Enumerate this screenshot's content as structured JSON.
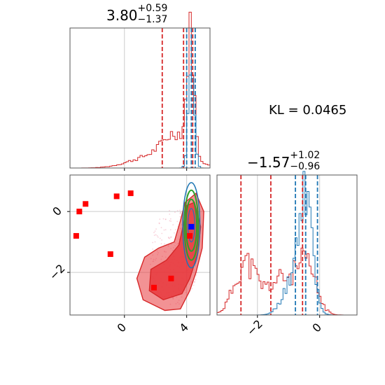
{
  "titles": {
    "param1": {
      "value": "3.80",
      "plus": "+0.59",
      "minus": "−1.37"
    },
    "param2": {
      "value": "−1.57",
      "plus": "+1.02",
      "minus": "−0.96"
    }
  },
  "kl_text": "KL = 0.0465",
  "colors": {
    "red": "#d62728",
    "blue": "#1f77b4",
    "green": "#2ca02c",
    "fill_red": "#e8383d",
    "grid": "#cccccc"
  },
  "chart_data": [
    {
      "type": "histogram",
      "panel": "marginal-param1",
      "xlim": [
        -3.5,
        5.5
      ],
      "xticks": [
        0,
        4
      ],
      "series": [
        {
          "color": "red",
          "quantiles": [
            2.43,
            3.8,
            4.39
          ]
        },
        {
          "color": "blue",
          "quantiles": [
            4.0,
            4.3,
            4.55
          ]
        }
      ]
    },
    {
      "type": "histogram",
      "panel": "marginal-param2",
      "xlim": [
        -3.3,
        1.2
      ],
      "xticks": [
        -2,
        0
      ],
      "xtick_labels": [
        "−2",
        "0"
      ],
      "series": [
        {
          "color": "red",
          "quantiles": [
            -2.53,
            -1.57,
            -0.55
          ]
        },
        {
          "color": "blue",
          "quantiles": [
            -0.78,
            -0.45,
            -0.07
          ]
        }
      ]
    },
    {
      "type": "scatter",
      "panel": "joint",
      "xlim": [
        -3.5,
        5.5
      ],
      "ylim": [
        -3.4,
        1.2
      ],
      "xticks": [
        0,
        4
      ],
      "xtick_labels": [
        "0",
        "4"
      ],
      "yticks": [
        0,
        -2
      ],
      "yticks_labels": [
        "0",
        "−2"
      ],
      "red_points": [
        {
          "x": -2.9,
          "y": 0.0
        },
        {
          "x": -2.5,
          "y": 0.25
        },
        {
          "x": -3.1,
          "y": -0.8
        },
        {
          "x": -0.5,
          "y": 0.5
        },
        {
          "x": 0.4,
          "y": 0.6
        },
        {
          "x": -0.9,
          "y": -1.4
        },
        {
          "x": 1.9,
          "y": -2.5
        },
        {
          "x": 3.0,
          "y": -2.2
        },
        {
          "x": 4.2,
          "y": -0.8
        }
      ],
      "blue_point": {
        "x": 4.3,
        "y": -0.5
      }
    }
  ]
}
